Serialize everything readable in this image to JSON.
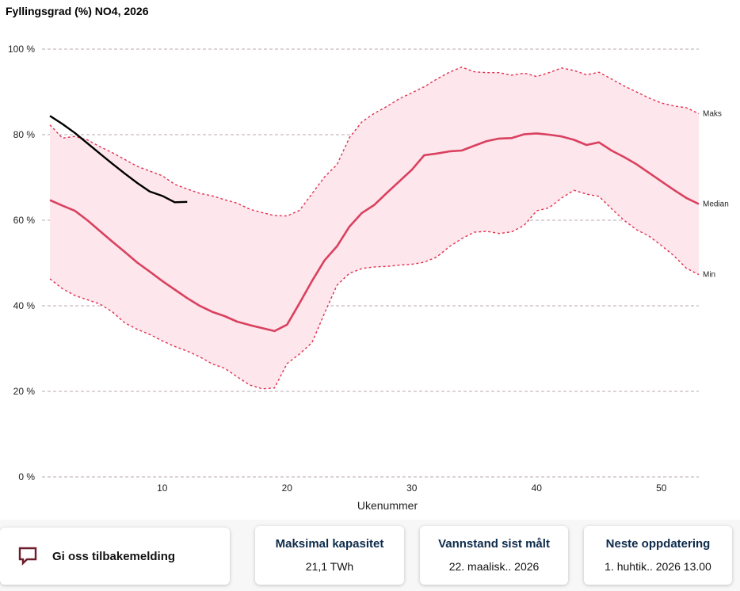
{
  "title": "Fyllingsgrad (%) NO4, 2026",
  "feedback": {
    "label": "Gi oss tilbakemelding",
    "icon": "chat-bubble-icon"
  },
  "info_cards": [
    {
      "title": "Maksimal kapasitet",
      "value": "21,1 TWh"
    },
    {
      "title": "Vannstand sist målt",
      "value": "22. maalisk.. 2026"
    },
    {
      "title": "Neste oppdatering",
      "value": "1. huhtik.. 2026 13.00"
    }
  ],
  "chart_data": {
    "type": "line",
    "title": "Fyllingsgrad (%) NO4, 2026",
    "xlabel": "Ukenummer",
    "ylabel": "",
    "xlim": [
      1,
      53
    ],
    "ylim": [
      0,
      100
    ],
    "xticks": [
      10,
      20,
      30,
      40,
      50
    ],
    "yticks": [
      0,
      20,
      40,
      60,
      80,
      100
    ],
    "ytick_labels": [
      "0 %",
      "20 %",
      "40 %",
      "60 %",
      "80 %",
      "100 %"
    ],
    "grid": "horizontal dashed",
    "colors": {
      "band": "#fde6ec",
      "median": "#d9415f",
      "range": "#e2304f",
      "current": "#000000"
    },
    "series": [
      {
        "name": "Maks",
        "style": "dashed",
        "x": [
          1,
          2,
          3,
          4,
          5,
          6,
          7,
          8,
          9,
          10,
          11,
          12,
          13,
          14,
          15,
          16,
          17,
          18,
          19,
          20,
          21,
          22,
          23,
          24,
          25,
          26,
          27,
          28,
          29,
          30,
          31,
          32,
          33,
          34,
          35,
          36,
          37,
          38,
          39,
          40,
          41,
          42,
          43,
          44,
          45,
          46,
          47,
          48,
          49,
          50,
          51,
          52,
          53
        ],
        "values": [
          82.3,
          79.2,
          79.6,
          78.8,
          77.2,
          75.8,
          74.2,
          72.6,
          71.5,
          70.4,
          68.4,
          67.3,
          66.3,
          65.7,
          64.8,
          64.0,
          62.6,
          61.8,
          61.1,
          61.0,
          62.3,
          66.2,
          70.1,
          73.0,
          79.3,
          83.0,
          85.0,
          86.6,
          88.4,
          89.8,
          91.2,
          93.0,
          94.6,
          95.8,
          94.7,
          94.5,
          94.5,
          93.9,
          94.4,
          93.6,
          94.5,
          95.6,
          95.0,
          94.0,
          94.6,
          93.0,
          91.4,
          90.0,
          88.6,
          87.4,
          86.7,
          86.3,
          84.9
        ]
      },
      {
        "name": "Median",
        "style": "solid",
        "x": [
          1,
          2,
          3,
          4,
          5,
          6,
          7,
          8,
          9,
          10,
          11,
          12,
          13,
          14,
          15,
          16,
          17,
          18,
          19,
          20,
          21,
          22,
          23,
          24,
          25,
          26,
          27,
          28,
          29,
          30,
          31,
          32,
          33,
          34,
          35,
          36,
          37,
          38,
          39,
          40,
          41,
          42,
          43,
          44,
          45,
          46,
          47,
          48,
          49,
          50,
          51,
          52,
          53
        ],
        "values": [
          64.7,
          63.4,
          62.2,
          60.0,
          57.5,
          55.0,
          52.6,
          50.1,
          48.0,
          45.8,
          43.8,
          41.8,
          40.0,
          38.6,
          37.6,
          36.3,
          35.5,
          34.8,
          34.1,
          35.6,
          40.6,
          45.8,
          50.6,
          53.9,
          58.5,
          61.7,
          63.6,
          66.4,
          69.1,
          71.8,
          75.2,
          75.6,
          76.1,
          76.3,
          77.4,
          78.5,
          79.1,
          79.2,
          80.1,
          80.3,
          80.0,
          79.6,
          78.8,
          77.6,
          78.2,
          76.3,
          74.8,
          73.1,
          71.1,
          69.1,
          67.1,
          65.2,
          63.8
        ]
      },
      {
        "name": "Min",
        "style": "dashed",
        "x": [
          1,
          2,
          3,
          4,
          5,
          6,
          7,
          8,
          9,
          10,
          11,
          12,
          13,
          14,
          15,
          16,
          17,
          18,
          19,
          20,
          21,
          22,
          23,
          24,
          25,
          26,
          27,
          28,
          29,
          30,
          31,
          32,
          33,
          34,
          35,
          36,
          37,
          38,
          39,
          40,
          41,
          42,
          43,
          44,
          45,
          46,
          47,
          48,
          49,
          50,
          51,
          52,
          53
        ],
        "values": [
          46.3,
          44.0,
          42.4,
          41.4,
          40.4,
          38.6,
          36.0,
          34.5,
          33.3,
          31.8,
          30.5,
          29.4,
          28.1,
          26.4,
          25.4,
          23.4,
          21.5,
          20.6,
          20.8,
          26.5,
          28.7,
          31.4,
          38.2,
          44.8,
          47.6,
          48.7,
          49.1,
          49.2,
          49.5,
          49.7,
          50.2,
          51.4,
          53.8,
          55.7,
          57.2,
          57.4,
          56.9,
          57.3,
          58.8,
          62.2,
          62.9,
          65.2,
          67.0,
          66.1,
          65.6,
          62.7,
          60.0,
          57.8,
          56.3,
          54.1,
          51.7,
          48.8,
          47.3
        ]
      },
      {
        "name": "",
        "style": "solid",
        "x": [
          1,
          2,
          3,
          4,
          5,
          6,
          7,
          8,
          9,
          10,
          11,
          12
        ],
        "values": [
          84.4,
          82.5,
          80.4,
          78.0,
          75.6,
          73.2,
          70.9,
          68.7,
          66.7,
          65.7,
          64.2,
          64.3
        ]
      }
    ]
  }
}
